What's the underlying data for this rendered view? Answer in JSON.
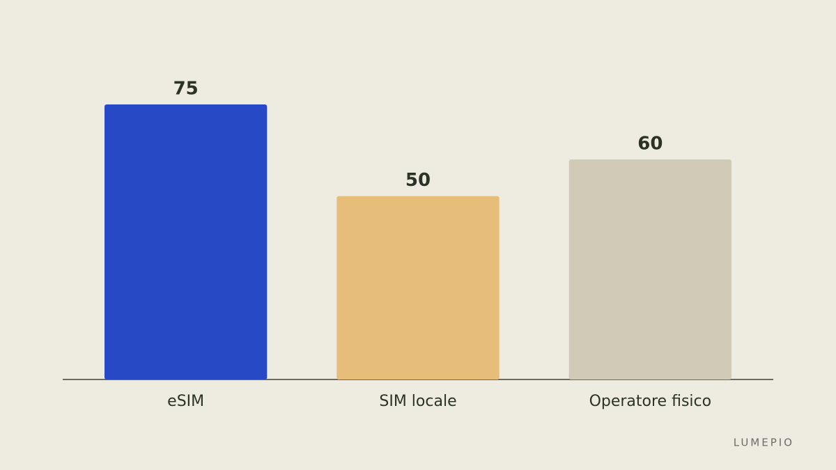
{
  "chart_data": {
    "type": "bar",
    "categories": [
      "eSIM",
      "SIM locale",
      "Operatore fisico"
    ],
    "values": [
      75,
      50,
      60
    ],
    "colors": [
      "#2749c6",
      "#e7bd7a",
      "#d1cab6"
    ],
    "brand": "LUMEPIO"
  }
}
